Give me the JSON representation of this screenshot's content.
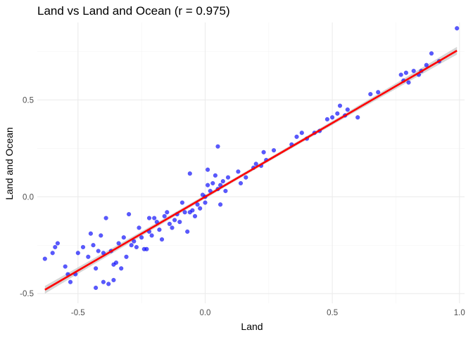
{
  "chart_data": {
    "type": "scatter",
    "title": "Land vs Land and Ocean (r = 0.975)",
    "xlabel": "Land",
    "ylabel": "Land and Ocean",
    "xlim": [
      -0.66,
      1.02
    ],
    "ylim": [
      -0.55,
      0.9
    ],
    "x_ticks": [
      -0.5,
      0.0,
      0.5,
      1.0
    ],
    "x_tick_labels": [
      "-0.5",
      "0.0",
      "0.5",
      "1.0"
    ],
    "y_ticks": [
      -0.5,
      0.0,
      0.5
    ],
    "y_tick_labels": [
      "-0.5",
      "0.0",
      "0.5"
    ],
    "grid": true,
    "legend": "none",
    "point_color": "#0000ff",
    "fit_color": "#ff0000",
    "band_color": "#999999",
    "fit": {
      "slope": 0.762,
      "intercept": 0.0,
      "ci_half_width": 0.02
    },
    "points": [
      [
        -0.63,
        -0.32
      ],
      [
        -0.6,
        -0.29
      ],
      [
        -0.59,
        -0.26
      ],
      [
        -0.58,
        -0.24
      ],
      [
        -0.55,
        -0.36
      ],
      [
        -0.54,
        -0.4
      ],
      [
        -0.53,
        -0.44
      ],
      [
        -0.51,
        -0.4
      ],
      [
        -0.5,
        -0.29
      ],
      [
        -0.48,
        -0.26
      ],
      [
        -0.46,
        -0.31
      ],
      [
        -0.45,
        -0.19
      ],
      [
        -0.44,
        -0.25
      ],
      [
        -0.43,
        -0.37
      ],
      [
        -0.43,
        -0.47
      ],
      [
        -0.42,
        -0.28
      ],
      [
        -0.41,
        -0.2
      ],
      [
        -0.4,
        -0.44
      ],
      [
        -0.4,
        -0.29
      ],
      [
        -0.39,
        -0.11
      ],
      [
        -0.38,
        -0.45
      ],
      [
        -0.37,
        -0.28
      ],
      [
        -0.36,
        -0.43
      ],
      [
        -0.36,
        -0.35
      ],
      [
        -0.35,
        -0.34
      ],
      [
        -0.34,
        -0.24
      ],
      [
        -0.33,
        -0.37
      ],
      [
        -0.32,
        -0.21
      ],
      [
        -0.31,
        -0.31
      ],
      [
        -0.3,
        -0.09
      ],
      [
        -0.29,
        -0.25
      ],
      [
        -0.28,
        -0.23
      ],
      [
        -0.27,
        -0.26
      ],
      [
        -0.26,
        -0.16
      ],
      [
        -0.25,
        -0.21
      ],
      [
        -0.24,
        -0.27
      ],
      [
        -0.23,
        -0.27
      ],
      [
        -0.22,
        -0.11
      ],
      [
        -0.22,
        -0.18
      ],
      [
        -0.21,
        -0.2
      ],
      [
        -0.2,
        -0.11
      ],
      [
        -0.19,
        -0.13
      ],
      [
        -0.18,
        -0.17
      ],
      [
        -0.17,
        -0.22
      ],
      [
        -0.16,
        -0.1
      ],
      [
        -0.15,
        -0.08
      ],
      [
        -0.14,
        -0.14
      ],
      [
        -0.13,
        -0.16
      ],
      [
        -0.12,
        -0.12
      ],
      [
        -0.11,
        -0.09
      ],
      [
        -0.1,
        -0.13
      ],
      [
        -0.09,
        -0.03
      ],
      [
        -0.08,
        -0.08
      ],
      [
        -0.07,
        -0.18
      ],
      [
        -0.06,
        -0.08
      ],
      [
        -0.06,
        0.12
      ],
      [
        -0.05,
        -0.07
      ],
      [
        -0.04,
        -0.1
      ],
      [
        -0.03,
        -0.04
      ],
      [
        -0.02,
        -0.06
      ],
      [
        -0.01,
        0.01
      ],
      [
        0.0,
        -0.03
      ],
      [
        0.0,
        0.0
      ],
      [
        0.01,
        0.14
      ],
      [
        0.01,
        0.06
      ],
      [
        0.02,
        0.03
      ],
      [
        0.03,
        0.07
      ],
      [
        0.04,
        0.11
      ],
      [
        0.05,
        0.04
      ],
      [
        0.05,
        0.26
      ],
      [
        0.06,
        -0.04
      ],
      [
        0.06,
        0.06
      ],
      [
        0.07,
        0.08
      ],
      [
        0.08,
        0.03
      ],
      [
        0.09,
        0.1
      ],
      [
        0.13,
        0.13
      ],
      [
        0.14,
        0.07
      ],
      [
        0.16,
        0.1
      ],
      [
        0.19,
        0.15
      ],
      [
        0.2,
        0.17
      ],
      [
        0.22,
        0.16
      ],
      [
        0.23,
        0.23
      ],
      [
        0.24,
        0.19
      ],
      [
        0.27,
        0.24
      ],
      [
        0.34,
        0.27
      ],
      [
        0.36,
        0.31
      ],
      [
        0.38,
        0.33
      ],
      [
        0.4,
        0.3
      ],
      [
        0.43,
        0.33
      ],
      [
        0.45,
        0.34
      ],
      [
        0.48,
        0.4
      ],
      [
        0.5,
        0.41
      ],
      [
        0.52,
        0.43
      ],
      [
        0.53,
        0.47
      ],
      [
        0.55,
        0.42
      ],
      [
        0.56,
        0.45
      ],
      [
        0.6,
        0.41
      ],
      [
        0.65,
        0.53
      ],
      [
        0.68,
        0.54
      ],
      [
        0.77,
        0.63
      ],
      [
        0.78,
        0.6
      ],
      [
        0.79,
        0.64
      ],
      [
        0.8,
        0.59
      ],
      [
        0.82,
        0.65
      ],
      [
        0.84,
        0.63
      ],
      [
        0.85,
        0.65
      ],
      [
        0.87,
        0.68
      ],
      [
        0.89,
        0.74
      ],
      [
        0.92,
        0.7
      ],
      [
        0.99,
        0.87
      ]
    ]
  }
}
